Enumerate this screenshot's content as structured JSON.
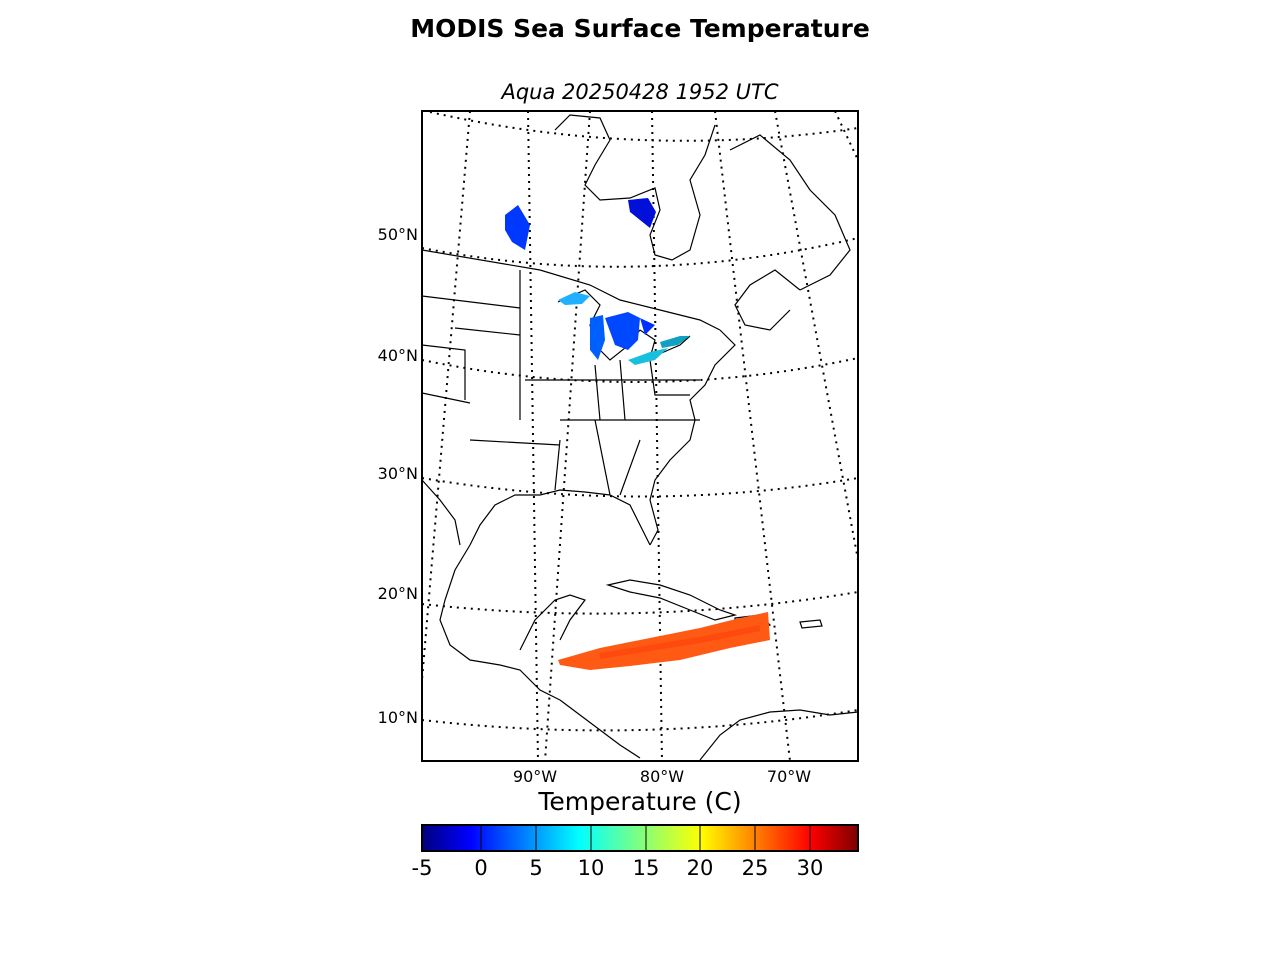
{
  "title": "MODIS Sea Surface Temperature",
  "subtitle": "Aqua 20250428 1952 UTC",
  "map": {
    "lat_labels": [
      "50°N",
      "40°N",
      "30°N",
      "20°N",
      "10°N"
    ],
    "lon_labels": [
      "90°W",
      "80°W",
      "70°W"
    ],
    "coastline_color": "#000000",
    "graticule_style": "dotted"
  },
  "colorbar": {
    "title": "Temperature (C)",
    "colormap": "jet",
    "vmin": -5,
    "vmax": 34,
    "ticks": [
      "-5",
      "0",
      "5",
      "10",
      "15",
      "20",
      "25",
      "30"
    ]
  }
}
